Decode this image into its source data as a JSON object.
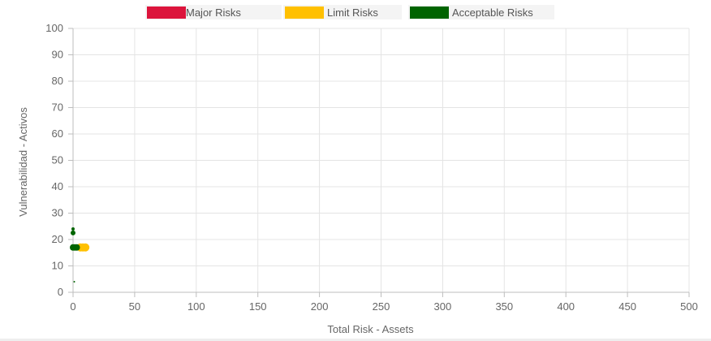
{
  "chart_data": {
    "type": "scatter",
    "title": "",
    "xlabel": "Total Risk - Assets",
    "ylabel": "Vulnerabilidad - Activos",
    "xlim": [
      0,
      500
    ],
    "ylim": [
      0,
      100
    ],
    "x_ticks": [
      0,
      50,
      100,
      150,
      200,
      250,
      300,
      350,
      400,
      450,
      500
    ],
    "y_ticks": [
      0,
      10,
      20,
      30,
      40,
      50,
      60,
      70,
      80,
      90,
      100
    ],
    "grid": true,
    "legend_position": "top",
    "series": [
      {
        "name": "Major Risks",
        "color": "#dc143c",
        "points": []
      },
      {
        "name": "Limit Risks",
        "color": "#ffc000",
        "points": [
          {
            "x": 6,
            "y": 17,
            "r": 5
          },
          {
            "x": 8,
            "y": 17,
            "r": 5
          },
          {
            "x": 10,
            "y": 17,
            "r": 5
          }
        ]
      },
      {
        "name": "Acceptable Risks",
        "color": "#006400",
        "points": [
          {
            "x": 0,
            "y": 24,
            "r": 2
          },
          {
            "x": 0,
            "y": 22.5,
            "r": 3
          },
          {
            "x": 0,
            "y": 17,
            "r": 4
          },
          {
            "x": 1.5,
            "y": 17,
            "r": 4
          },
          {
            "x": 3,
            "y": 17,
            "r": 4
          },
          {
            "x": 1,
            "y": 4,
            "r": 1
          }
        ]
      }
    ]
  }
}
